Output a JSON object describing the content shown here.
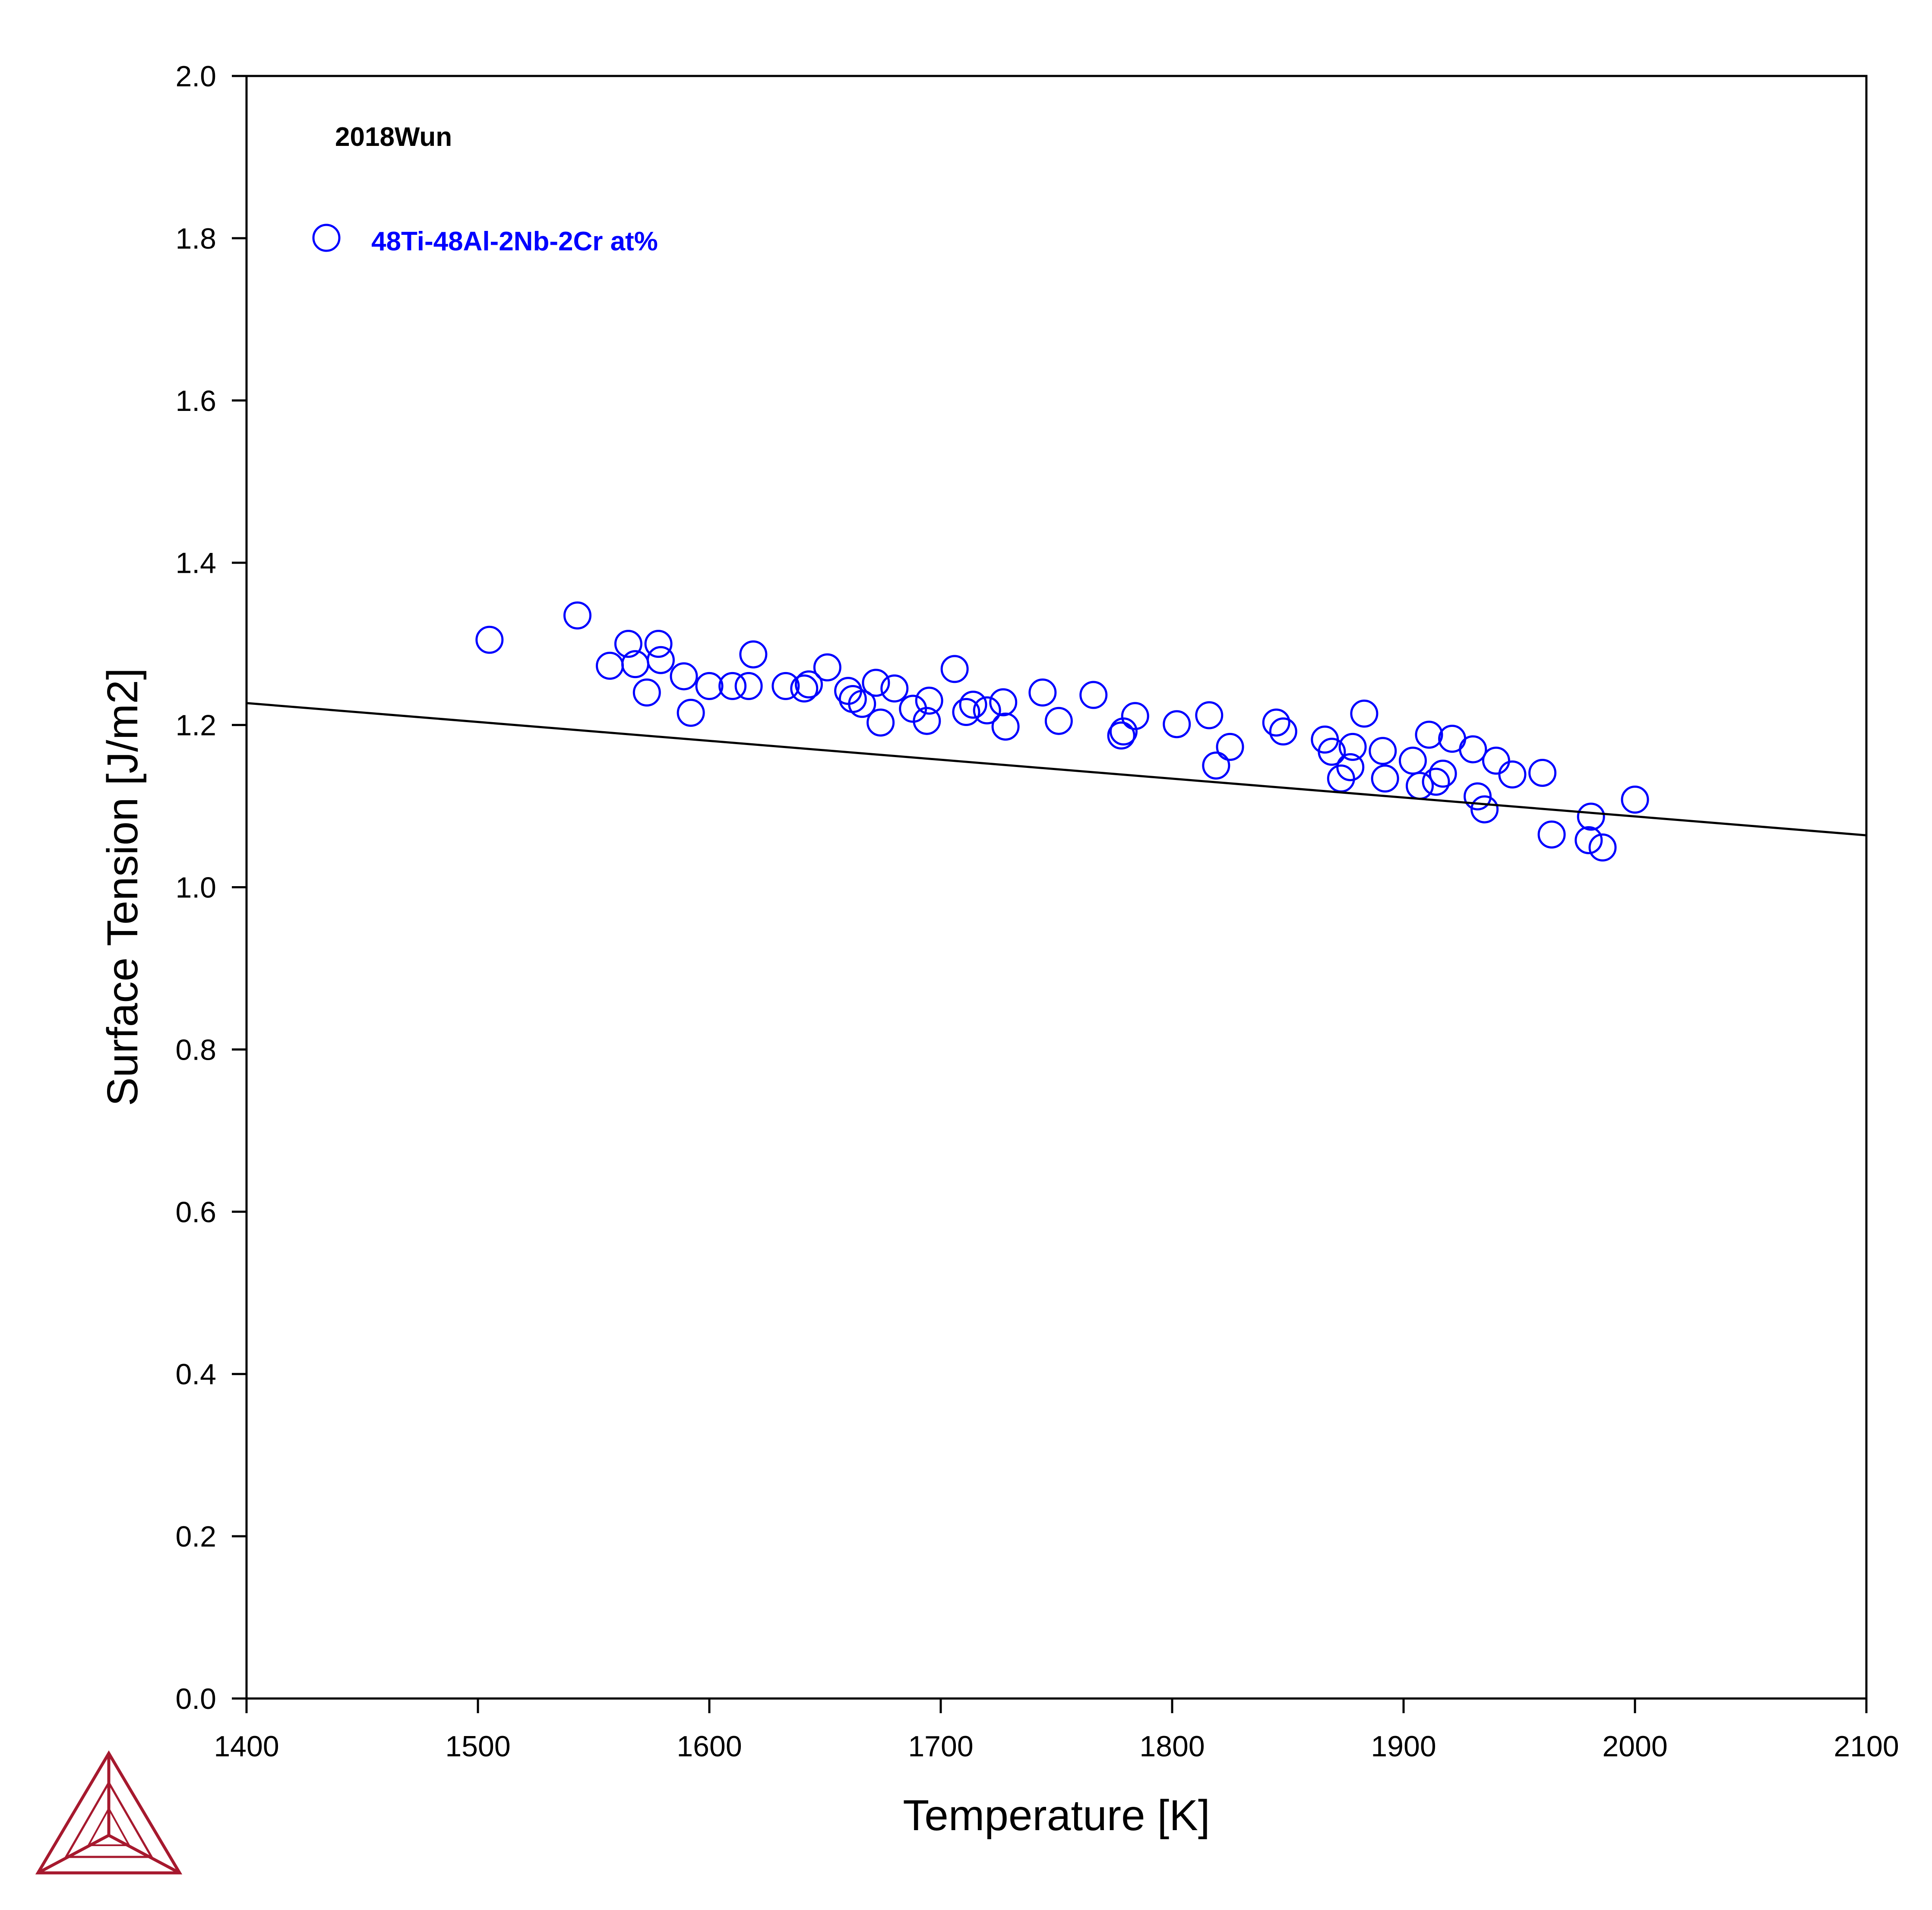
{
  "chart_data": {
    "type": "scatter",
    "annotation_title": "2018Wun",
    "xlabel": "Temperature [K]",
    "ylabel": "Surface Tension [J/m2]",
    "xlim": [
      1400,
      2100
    ],
    "ylim": [
      0.0,
      2.0
    ],
    "x_ticks": [
      1400,
      1500,
      1600,
      1700,
      1800,
      1900,
      2000,
      2100
    ],
    "x_tick_labels": [
      "1400",
      "1500",
      "1600",
      "1700",
      "1800",
      "1900",
      "2000",
      "2100"
    ],
    "y_ticks": [
      0.0,
      0.2,
      0.4,
      0.6,
      0.8,
      1.0,
      1.2,
      1.4,
      1.6,
      1.8,
      2.0
    ],
    "y_tick_labels": [
      "0.0",
      "0.2",
      "0.4",
      "0.6",
      "0.8",
      "1.0",
      "1.2",
      "1.4",
      "1.6",
      "1.8",
      "2.0"
    ],
    "grid": false,
    "legend_position": "top-left",
    "series": [
      {
        "name": "48Ti-48Al-2Nb-2Cr at%",
        "kind": "scatter",
        "marker": "open-circle",
        "color": "#0000ff",
        "points": [
          [
            1505,
            1.305
          ],
          [
            1543,
            1.335
          ],
          [
            1557,
            1.273
          ],
          [
            1565,
            1.3
          ],
          [
            1568,
            1.275
          ],
          [
            1573,
            1.24
          ],
          [
            1578,
            1.3
          ],
          [
            1579,
            1.28
          ],
          [
            1589,
            1.26
          ],
          [
            1592,
            1.215
          ],
          [
            1600,
            1.248
          ],
          [
            1610,
            1.248
          ],
          [
            1617,
            1.248
          ],
          [
            1619,
            1.287
          ],
          [
            1633,
            1.248
          ],
          [
            1641,
            1.245
          ],
          [
            1643,
            1.25
          ],
          [
            1651,
            1.271
          ],
          [
            1660,
            1.242
          ],
          [
            1662,
            1.232
          ],
          [
            1666,
            1.226
          ],
          [
            1672,
            1.252
          ],
          [
            1674,
            1.203
          ],
          [
            1680,
            1.245
          ],
          [
            1688,
            1.22
          ],
          [
            1694,
            1.205
          ],
          [
            1695,
            1.23
          ],
          [
            1706,
            1.269
          ],
          [
            1711,
            1.216
          ],
          [
            1714,
            1.225
          ],
          [
            1720,
            1.218
          ],
          [
            1727,
            1.228
          ],
          [
            1728,
            1.198
          ],
          [
            1744,
            1.24
          ],
          [
            1751,
            1.205
          ],
          [
            1766,
            1.237
          ],
          [
            1778,
            1.187
          ],
          [
            1779,
            1.192
          ],
          [
            1784,
            1.211
          ],
          [
            1802,
            1.201
          ],
          [
            1816,
            1.212
          ],
          [
            1819,
            1.15
          ],
          [
            1825,
            1.173
          ],
          [
            1845,
            1.203
          ],
          [
            1848,
            1.192
          ],
          [
            1866,
            1.182
          ],
          [
            1869,
            1.167
          ],
          [
            1873,
            1.134
          ],
          [
            1877,
            1.148
          ],
          [
            1878,
            1.173
          ],
          [
            1883,
            1.214
          ],
          [
            1891,
            1.168
          ],
          [
            1892,
            1.134
          ],
          [
            1904,
            1.156
          ],
          [
            1907,
            1.125
          ],
          [
            1911,
            1.188
          ],
          [
            1914,
            1.13
          ],
          [
            1917,
            1.14
          ],
          [
            1921,
            1.183
          ],
          [
            1930,
            1.17
          ],
          [
            1932,
            1.112
          ],
          [
            1935,
            1.096
          ],
          [
            1940,
            1.156
          ],
          [
            1947,
            1.139
          ],
          [
            1960,
            1.141
          ],
          [
            1964,
            1.065
          ],
          [
            1980,
            1.058
          ],
          [
            1981,
            1.087
          ],
          [
            1986,
            1.049
          ],
          [
            2000,
            1.108
          ]
        ]
      },
      {
        "kind": "line",
        "color": "#000000",
        "points": [
          [
            1400,
            1.227
          ],
          [
            2100,
            1.064
          ]
        ]
      }
    ]
  },
  "logo": {
    "name": "thermo-calc-logo",
    "color": "#a6192e"
  }
}
